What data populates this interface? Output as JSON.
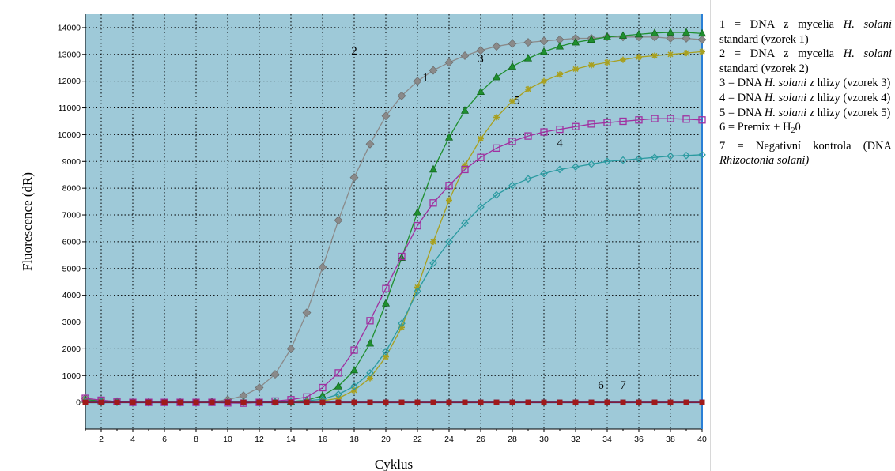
{
  "chart_data": {
    "type": "line",
    "xlabel": "Cyklus",
    "ylabel": "Fluorescence (dR)",
    "xlim": [
      1,
      40
    ],
    "ylim": [
      -1000,
      14500
    ],
    "x_ticks": [
      2,
      4,
      6,
      8,
      10,
      12,
      14,
      16,
      18,
      20,
      22,
      24,
      26,
      28,
      30,
      32,
      34,
      36,
      38,
      40
    ],
    "y_ticks": [
      0,
      1000,
      2000,
      3000,
      4000,
      5000,
      6000,
      7000,
      8000,
      9000,
      10000,
      11000,
      12000,
      13000,
      14000
    ],
    "grid": true,
    "background_color": "#9ec9d8",
    "series": [
      {
        "name": "1",
        "color": "#1f8f2f",
        "marker": "triangle",
        "x": [
          1,
          2,
          3,
          4,
          5,
          6,
          7,
          8,
          9,
          10,
          11,
          12,
          13,
          14,
          15,
          16,
          17,
          18,
          19,
          20,
          21,
          22,
          23,
          24,
          25,
          26,
          27,
          28,
          29,
          30,
          31,
          32,
          33,
          34,
          35,
          36,
          37,
          38,
          39,
          40
        ],
        "y": [
          100,
          50,
          20,
          0,
          0,
          0,
          0,
          0,
          0,
          0,
          0,
          0,
          10,
          30,
          80,
          250,
          600,
          1200,
          2200,
          3700,
          5400,
          7100,
          8700,
          9900,
          10900,
          11600,
          12150,
          12550,
          12850,
          13100,
          13300,
          13450,
          13550,
          13650,
          13700,
          13750,
          13800,
          13820,
          13820,
          13780
        ]
      },
      {
        "name": "2",
        "color": "#8a8a8a",
        "marker": "diamond",
        "x": [
          1,
          2,
          3,
          4,
          5,
          6,
          7,
          8,
          9,
          10,
          11,
          12,
          13,
          14,
          15,
          16,
          17,
          18,
          19,
          20,
          21,
          22,
          23,
          24,
          25,
          26,
          27,
          28,
          29,
          30,
          31,
          32,
          33,
          34,
          35,
          36,
          37,
          38,
          39,
          40
        ],
        "y": [
          150,
          80,
          30,
          0,
          0,
          0,
          0,
          0,
          20,
          100,
          250,
          550,
          1050,
          2000,
          3350,
          5050,
          6800,
          8400,
          9650,
          10700,
          11450,
          12000,
          12400,
          12700,
          12950,
          13150,
          13300,
          13400,
          13450,
          13500,
          13550,
          13600,
          13600,
          13650,
          13650,
          13650,
          13650,
          13600,
          13600,
          13550
        ]
      },
      {
        "name": "3",
        "color": "#a8a020",
        "marker": "star",
        "x": [
          1,
          2,
          3,
          4,
          5,
          6,
          7,
          8,
          9,
          10,
          11,
          12,
          13,
          14,
          15,
          16,
          17,
          18,
          19,
          20,
          21,
          22,
          23,
          24,
          25,
          26,
          27,
          28,
          29,
          30,
          31,
          32,
          33,
          34,
          35,
          36,
          37,
          38,
          39,
          40
        ],
        "y": [
          50,
          20,
          0,
          0,
          0,
          0,
          0,
          0,
          0,
          0,
          0,
          0,
          0,
          10,
          30,
          60,
          150,
          450,
          900,
          1700,
          2800,
          4300,
          6000,
          7550,
          8850,
          9850,
          10650,
          11250,
          11700,
          12000,
          12250,
          12450,
          12600,
          12700,
          12800,
          12900,
          12950,
          13000,
          13050,
          13100
        ]
      },
      {
        "name": "4",
        "color": "#2a9aa0",
        "marker": "open-diamond",
        "x": [
          1,
          2,
          3,
          4,
          5,
          6,
          7,
          8,
          9,
          10,
          11,
          12,
          13,
          14,
          15,
          16,
          17,
          18,
          19,
          20,
          21,
          22,
          23,
          24,
          25,
          26,
          27,
          28,
          29,
          30,
          31,
          32,
          33,
          34,
          35,
          36,
          37,
          38,
          39,
          40
        ],
        "y": [
          50,
          20,
          0,
          0,
          0,
          0,
          0,
          0,
          0,
          0,
          0,
          0,
          10,
          30,
          60,
          120,
          300,
          600,
          1100,
          1900,
          2950,
          4150,
          5200,
          6000,
          6700,
          7300,
          7750,
          8100,
          8350,
          8550,
          8700,
          8800,
          8900,
          9000,
          9050,
          9100,
          9150,
          9200,
          9220,
          9250
        ]
      },
      {
        "name": "5",
        "color": "#a030a0",
        "marker": "open-square",
        "x": [
          1,
          2,
          3,
          4,
          5,
          6,
          7,
          8,
          9,
          10,
          11,
          12,
          13,
          14,
          15,
          16,
          17,
          18,
          19,
          20,
          21,
          22,
          23,
          24,
          25,
          26,
          27,
          28,
          29,
          30,
          31,
          32,
          33,
          34,
          35,
          36,
          37,
          38,
          39,
          40
        ],
        "y": [
          150,
          80,
          30,
          0,
          0,
          0,
          0,
          0,
          0,
          -20,
          -30,
          0,
          50,
          100,
          200,
          550,
          1100,
          1950,
          3050,
          4250,
          5450,
          6600,
          7450,
          8100,
          8700,
          9150,
          9500,
          9750,
          9950,
          10100,
          10200,
          10300,
          10400,
          10450,
          10500,
          10550,
          10600,
          10600,
          10580,
          10550
        ]
      },
      {
        "name": "6",
        "color": "#1a2aa0",
        "marker": "square",
        "x": [
          1,
          2,
          3,
          4,
          5,
          6,
          7,
          8,
          9,
          10,
          11,
          12,
          13,
          14,
          15,
          16,
          17,
          18,
          19,
          20,
          21,
          22,
          23,
          24,
          25,
          26,
          27,
          28,
          29,
          30,
          31,
          32,
          33,
          34,
          35,
          36,
          37,
          38,
          39,
          40
        ],
        "y": [
          0,
          0,
          0,
          0,
          0,
          0,
          0,
          0,
          0,
          0,
          0,
          0,
          0,
          0,
          0,
          0,
          0,
          0,
          0,
          0,
          0,
          0,
          0,
          0,
          0,
          0,
          0,
          0,
          0,
          0,
          0,
          0,
          0,
          0,
          0,
          0,
          0,
          0,
          0,
          0
        ]
      },
      {
        "name": "7",
        "color": "#a01a1a",
        "marker": "square",
        "x": [
          1,
          2,
          3,
          4,
          5,
          6,
          7,
          8,
          9,
          10,
          11,
          12,
          13,
          14,
          15,
          16,
          17,
          18,
          19,
          20,
          21,
          22,
          23,
          24,
          25,
          26,
          27,
          28,
          29,
          30,
          31,
          32,
          33,
          34,
          35,
          36,
          37,
          38,
          39,
          40
        ],
        "y": [
          0,
          0,
          0,
          0,
          0,
          0,
          0,
          0,
          0,
          0,
          0,
          0,
          0,
          0,
          0,
          0,
          0,
          0,
          0,
          0,
          0,
          0,
          0,
          0,
          0,
          0,
          0,
          0,
          0,
          0,
          0,
          0,
          0,
          0,
          0,
          0,
          0,
          0,
          0,
          0
        ]
      }
    ],
    "curve_labels": [
      {
        "text": "2",
        "x": 18,
        "y": 13000
      },
      {
        "text": "1",
        "x": 22.5,
        "y": 12000
      },
      {
        "text": "3",
        "x": 26,
        "y": 12700
      },
      {
        "text": "5",
        "x": 28.3,
        "y": 11150
      },
      {
        "text": "4",
        "x": 31,
        "y": 9550
      },
      {
        "text": "6",
        "x": 33.6,
        "y": 500
      },
      {
        "text": "7",
        "x": 35,
        "y": 500
      }
    ]
  },
  "legend": {
    "entries": [
      {
        "pre": "1 = DNA z mycelia ",
        "it": "H. solani",
        "post": " standard (vzorek 1)"
      },
      {
        "pre": "2 = DNA z mycelia ",
        "it": "H. solani",
        "post": " standard (vzorek 2)"
      },
      {
        "pre": "3 = DNA ",
        "it": "H. solani",
        "post": " z hlizy (vzorek 3)"
      },
      {
        "pre": "4 = DNA ",
        "it": "H. solani",
        "post": " z hlizy (vzorek 4)"
      },
      {
        "pre": "5 = DNA ",
        "it": "H. solani",
        "post": " z hlizy (vzorek 5)"
      },
      {
        "pre": "6 = Premix + H",
        "sub": "2",
        "post": "0"
      },
      {
        "pre": "7 = Negativní kontrola (DNA ",
        "it": "Rhizoctonia solani)",
        "post": ""
      }
    ]
  }
}
